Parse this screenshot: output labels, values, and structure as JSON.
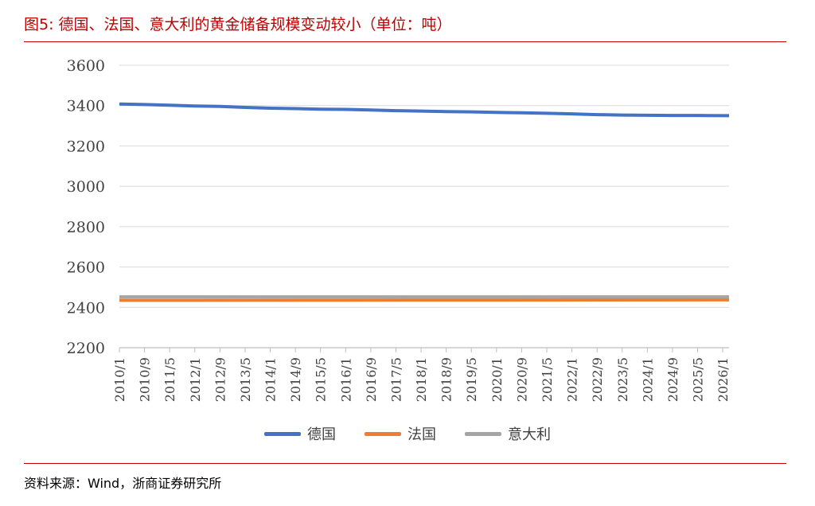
{
  "figure": {
    "title": "图5:  德国、法国、意大利的黄金储备规模变动较小（单位：吨）",
    "source": "资料来源：Wind，浙商证券研究所"
  },
  "chart_data": {
    "type": "line",
    "ylim": [
      2200,
      3600
    ],
    "yticks": [
      2200,
      2400,
      2600,
      2800,
      3000,
      3200,
      3400,
      3600
    ],
    "xlim": [
      "2010-01",
      "2026-03"
    ],
    "xticks": [
      "2010/1",
      "2010/9",
      "2011/5",
      "2012/1",
      "2012/9",
      "2013/5",
      "2014/1",
      "2014/9",
      "2015/5",
      "2016/1",
      "2016/9",
      "2017/5",
      "2018/1",
      "2018/9",
      "2019/5",
      "2020/1",
      "2020/9",
      "2021/5",
      "2022/1",
      "2022/9",
      "2023/5",
      "2024/1",
      "2024/9",
      "2025/5",
      "2026/1"
    ],
    "grid": "horizontal",
    "legend_position": "bottom",
    "series": [
      {
        "name": "德国",
        "color": "#4472c4",
        "points": [
          [
            "2010-01",
            3408
          ],
          [
            "2010-09",
            3405
          ],
          [
            "2011-05",
            3402
          ],
          [
            "2012-01",
            3398
          ],
          [
            "2012-09",
            3396
          ],
          [
            "2013-05",
            3391
          ],
          [
            "2014-01",
            3387
          ],
          [
            "2014-09",
            3385
          ],
          [
            "2015-05",
            3382
          ],
          [
            "2016-01",
            3381
          ],
          [
            "2016-09",
            3378
          ],
          [
            "2017-05",
            3375
          ],
          [
            "2018-01",
            3373
          ],
          [
            "2018-09",
            3370
          ],
          [
            "2019-05",
            3369
          ],
          [
            "2020-01",
            3366
          ],
          [
            "2020-09",
            3364
          ],
          [
            "2021-05",
            3362
          ],
          [
            "2022-01",
            3359
          ],
          [
            "2022-09",
            3355
          ],
          [
            "2023-05",
            3353
          ],
          [
            "2024-01",
            3352
          ],
          [
            "2024-09",
            3351
          ],
          [
            "2025-05",
            3351
          ],
          [
            "2026-03",
            3350
          ]
        ]
      },
      {
        "name": "法国",
        "color": "#ed7d31",
        "points": [
          [
            "2010-01",
            2435
          ],
          [
            "2016-01",
            2436
          ],
          [
            "2026-03",
            2437
          ]
        ]
      },
      {
        "name": "意大利",
        "color": "#a5a5a5",
        "points": [
          [
            "2010-01",
            2452
          ],
          [
            "2026-03",
            2452
          ]
        ]
      }
    ]
  }
}
